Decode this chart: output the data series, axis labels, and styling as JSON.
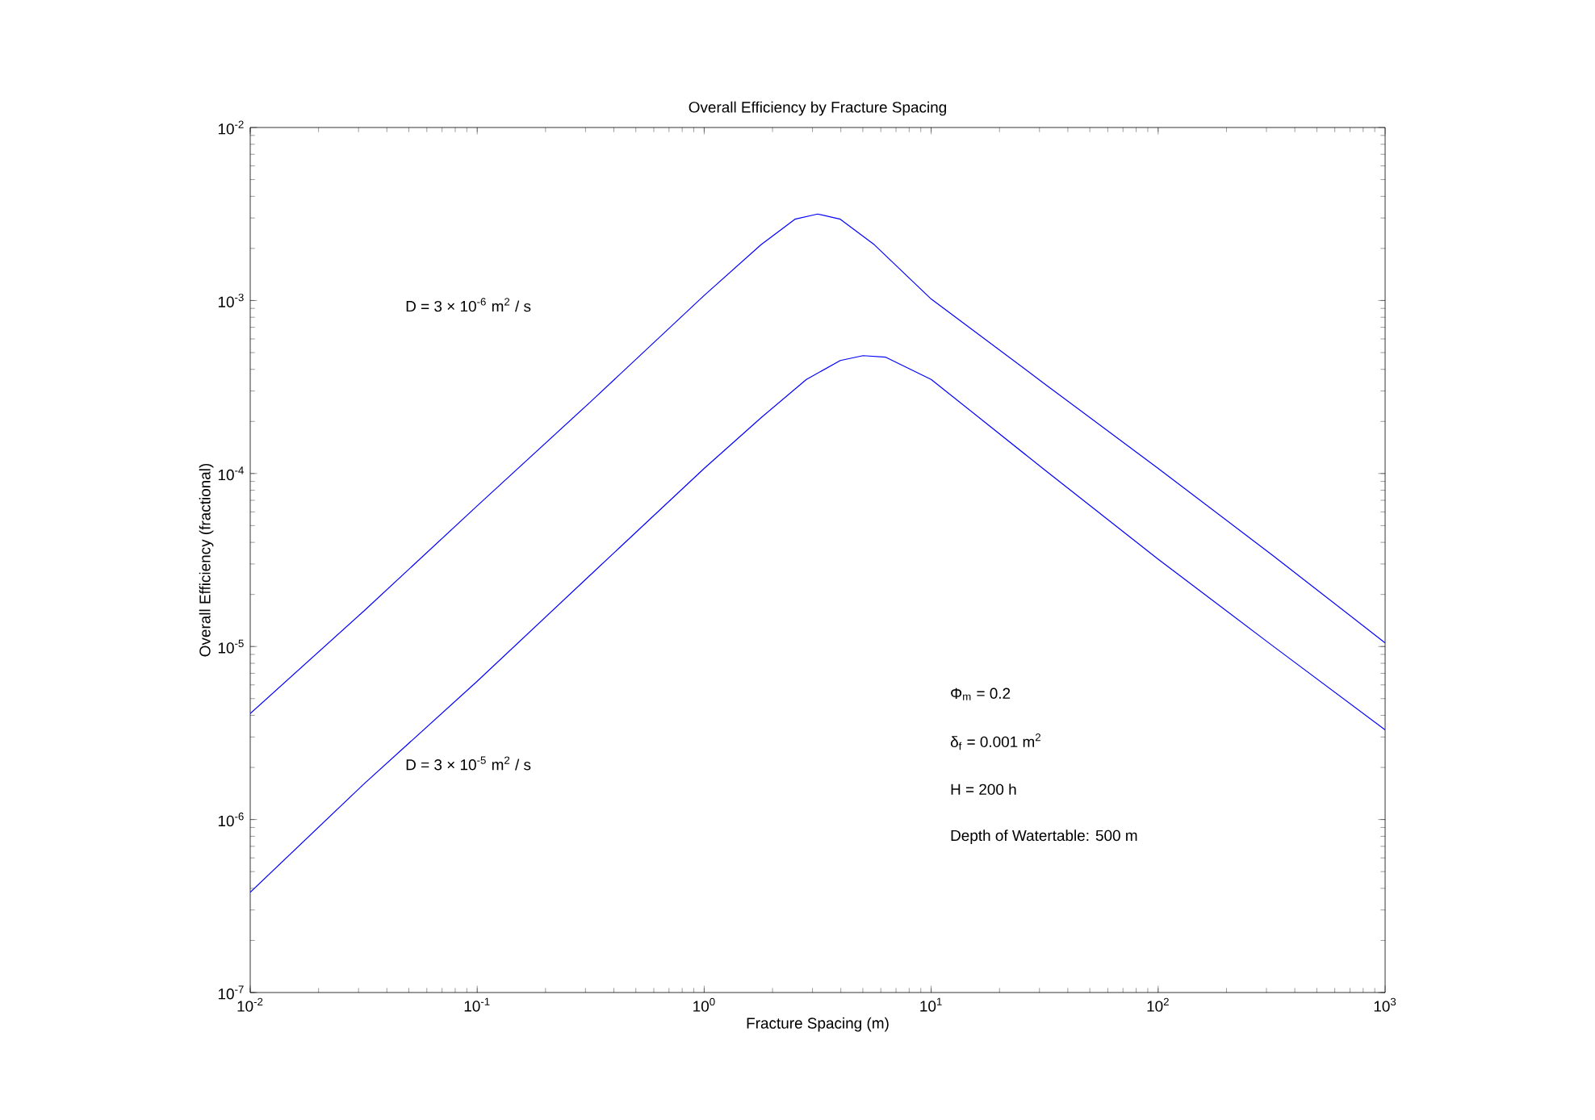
{
  "chart_data": {
    "type": "line",
    "title": "Overall Efficiency by Fracture Spacing",
    "xlabel": "Fracture Spacing (m)",
    "ylabel": "Overall Efficiency (fractional)",
    "log": "xy",
    "grid": false,
    "legend": false,
    "marker": "none",
    "line_style": "solid",
    "xlim": [
      0.01,
      1000
    ],
    "ylim": [
      1e-07,
      0.01
    ],
    "xticks": [
      {
        "value": 0.01,
        "label": "10$^{-2}$"
      },
      {
        "value": 0.1,
        "label": "10$^{-1}$"
      },
      {
        "value": 1,
        "label": "10$^{0}$"
      },
      {
        "value": 10,
        "label": "10$^{1}$"
      },
      {
        "value": 100,
        "label": "10$^{2}$"
      },
      {
        "value": 1000,
        "label": "10$^{3}$"
      }
    ],
    "yticks": [
      {
        "value": 1e-07,
        "label": "10$^{-7}$"
      },
      {
        "value": 1e-06,
        "label": "10$^{-6}$"
      },
      {
        "value": 1e-05,
        "label": "10$^{-5}$"
      },
      {
        "value": 0.0001,
        "label": "10$^{-4}$"
      },
      {
        "value": 0.001,
        "label": "10$^{-3}$"
      },
      {
        "value": 0.01,
        "label": "10$^{-2}$"
      }
    ],
    "series": [
      {
        "color": "#0000ff",
        "x": [
          0.01,
          0.0316,
          0.1,
          0.316,
          1,
          1.78,
          2.51,
          3.16,
          3.98,
          5.62,
          10,
          31.6,
          100,
          316,
          1000
        ],
        "values": [
          4.1e-06,
          1.6e-05,
          6.5e-05,
          0.00026,
          0.00107,
          0.0021,
          0.00295,
          0.00316,
          0.00295,
          0.0021,
          0.00102,
          0.00033,
          0.000107,
          3.4e-05,
          1.05e-05
        ]
      },
      {
        "color": "#0000ff",
        "x": [
          0.01,
          0.0316,
          0.1,
          0.316,
          1,
          1.78,
          2.82,
          3.98,
          5.01,
          6.31,
          10,
          31.6,
          100,
          316,
          1000
        ],
        "values": [
          3.8e-07,
          1.6e-06,
          6.3e-06,
          2.6e-05,
          0.000107,
          0.00021,
          0.00035,
          0.00045,
          0.00048,
          0.00047,
          0.00035,
          0.000105,
          3.2e-05,
          1.02e-05,
          3.3e-06
        ]
      }
    ],
    "annotations": [
      "D = 3 × 10$^{-6}$ m$^{2}$ / s",
      "D = 3 × 10$^{-5}$ m$^{2}$ / s",
      "Φ$_{m}$ = 0.2",
      "δ$_{f}$ = 0.001 m$^{2}$",
      "H = 200 h",
      "Depth of Watertable: 500 m"
    ]
  }
}
